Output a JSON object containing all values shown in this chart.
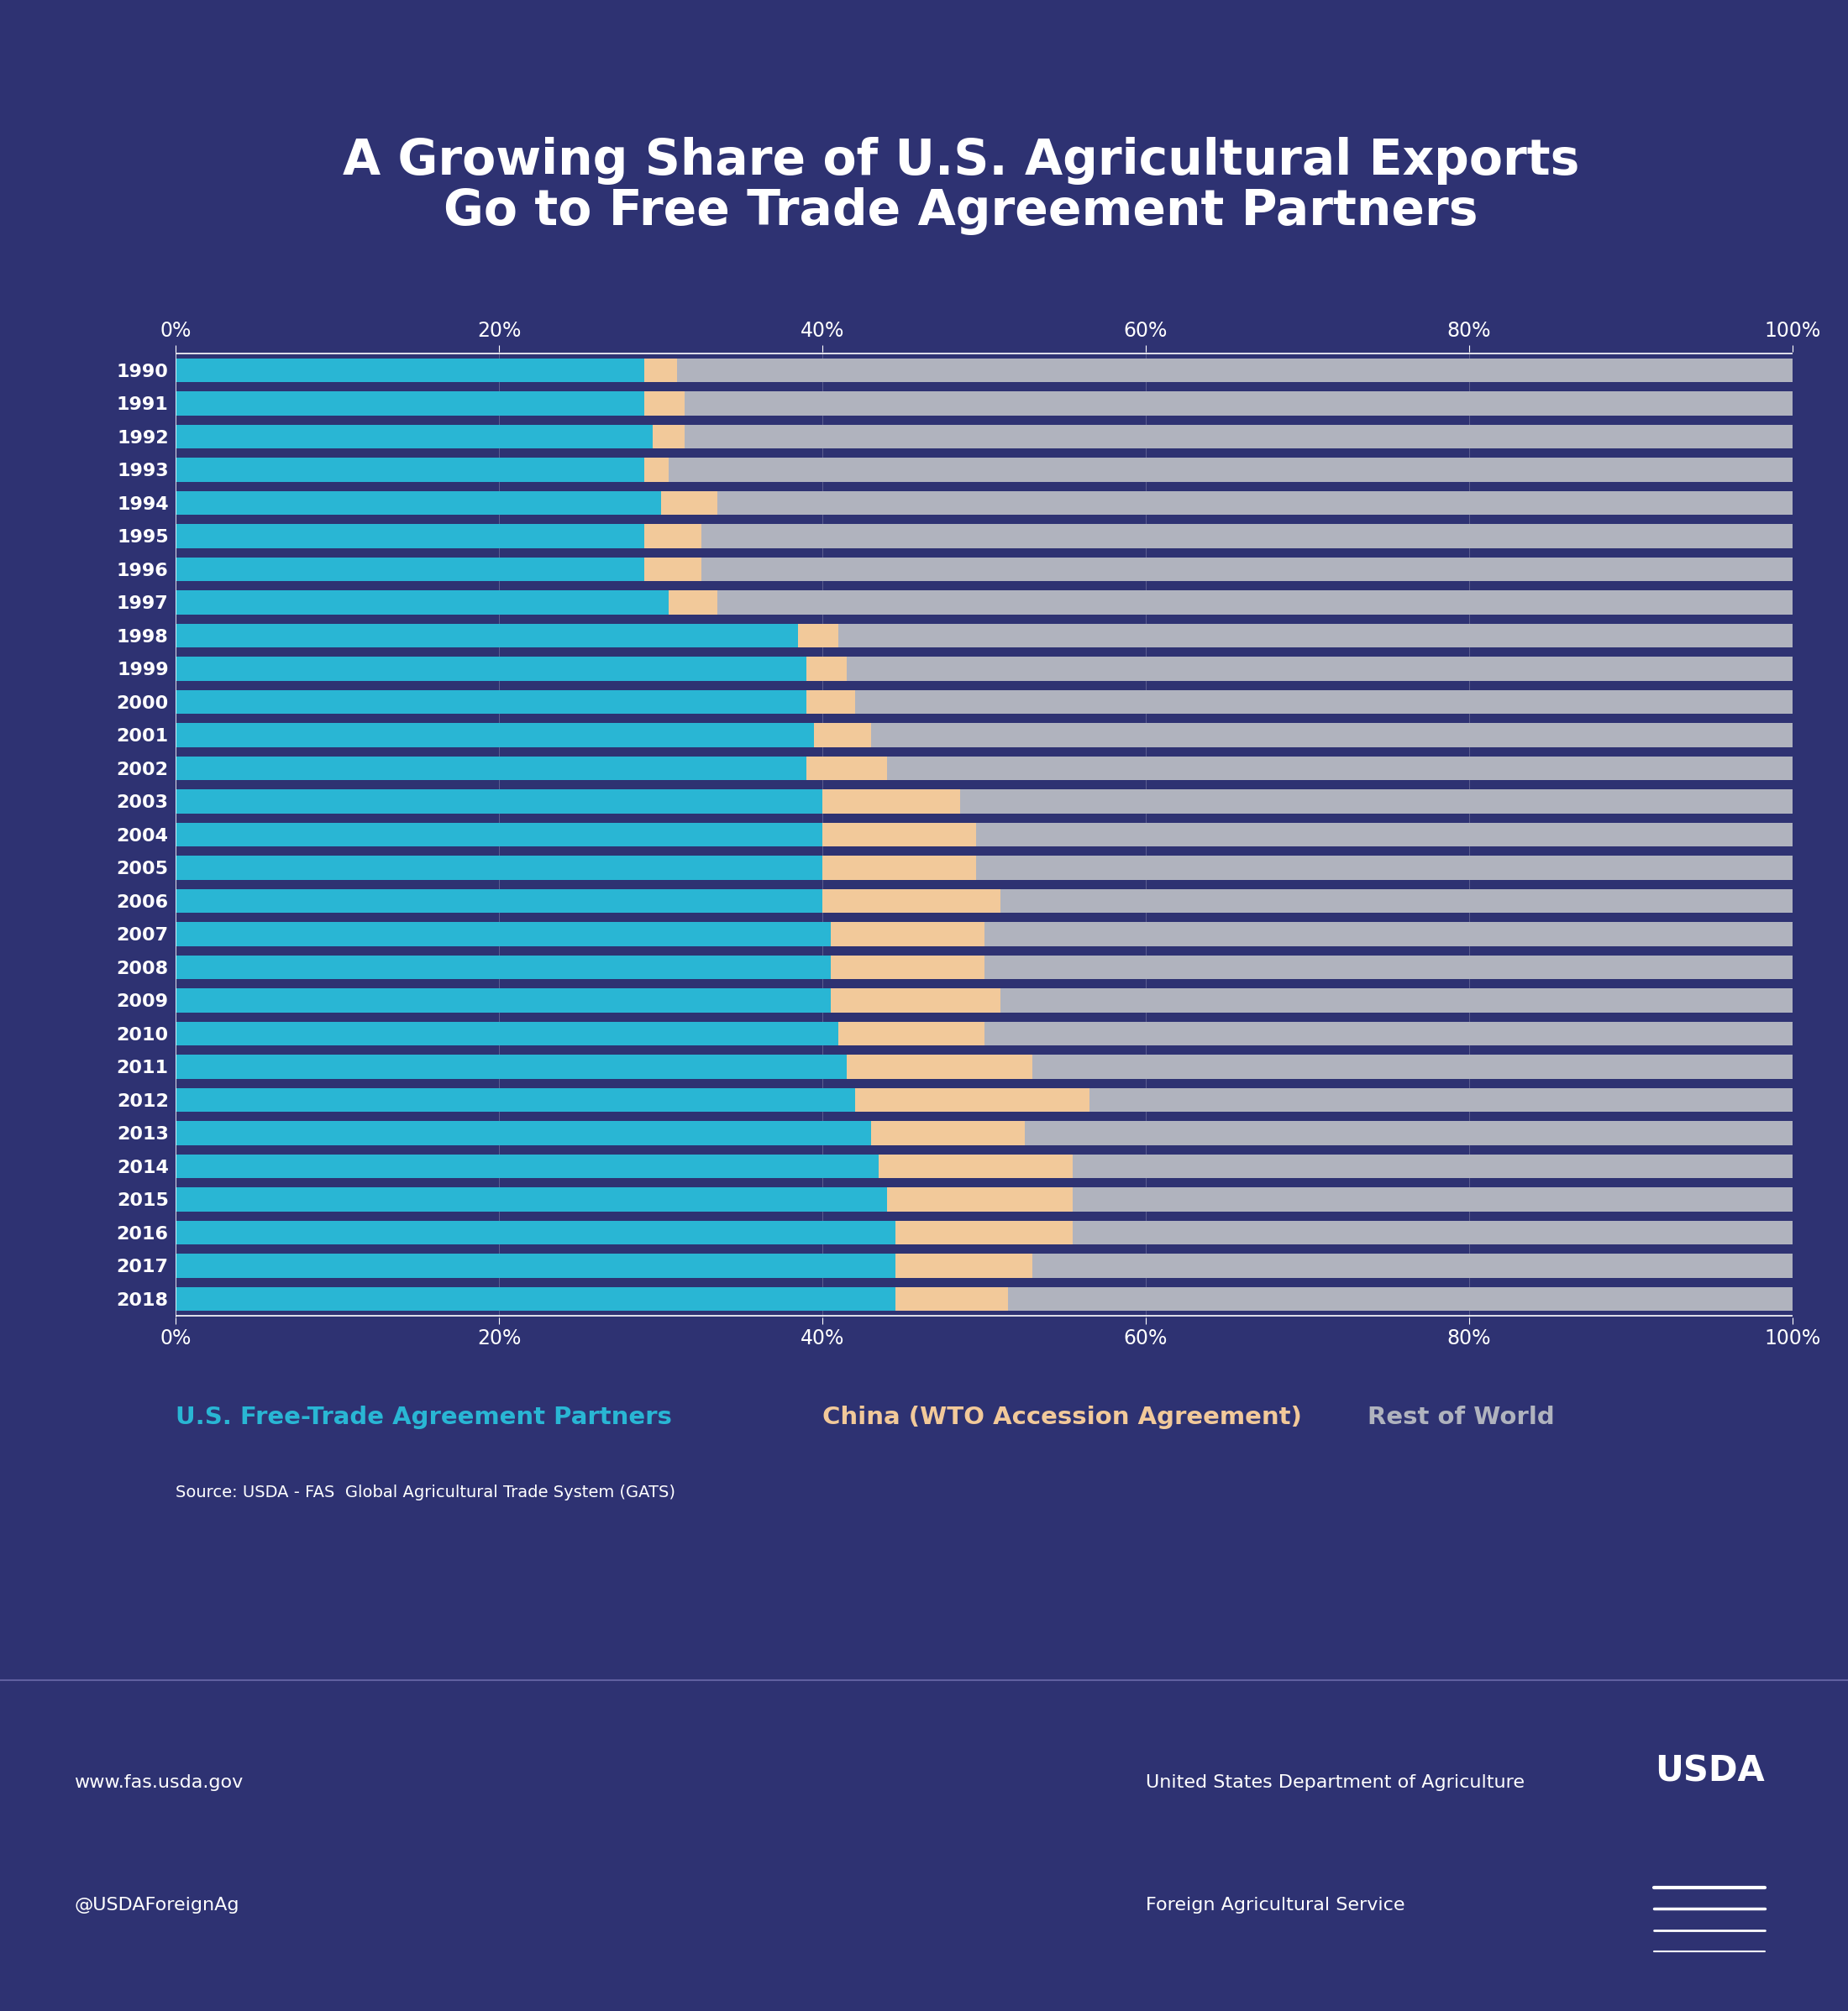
{
  "title_line1": "A Growing Share of U.S. Agricultural Exports",
  "title_line2": "Go to Free Trade Agreement Partners",
  "years": [
    1990,
    1991,
    1992,
    1993,
    1994,
    1995,
    1996,
    1997,
    1998,
    1999,
    2000,
    2001,
    2002,
    2003,
    2004,
    2005,
    2006,
    2007,
    2008,
    2009,
    2010,
    2011,
    2012,
    2013,
    2014,
    2015,
    2016,
    2017,
    2018
  ],
  "fta": [
    29.0,
    29.0,
    29.5,
    29.0,
    30.0,
    29.0,
    29.0,
    30.5,
    38.5,
    39.0,
    39.0,
    39.5,
    39.0,
    40.0,
    40.0,
    40.0,
    40.0,
    40.5,
    40.5,
    40.5,
    41.0,
    41.5,
    42.0,
    43.0,
    43.5,
    44.0,
    44.5,
    44.5,
    44.5
  ],
  "china": [
    2.0,
    2.5,
    2.0,
    1.5,
    3.5,
    3.5,
    3.5,
    3.0,
    2.5,
    2.5,
    3.0,
    3.5,
    5.0,
    8.5,
    9.5,
    9.5,
    11.0,
    9.5,
    9.5,
    10.5,
    9.0,
    11.5,
    14.5,
    9.5,
    12.0,
    11.5,
    11.0,
    8.5,
    7.0
  ],
  "bg_color": "#2e3272",
  "fta_color": "#29b6d4",
  "china_color": "#f2c99a",
  "rest_color": "#b0b3be",
  "title_color": "#ffffff",
  "axis_tick_color": "#ffffff",
  "year_label_color": "#ffffff",
  "legend_fta_label": "U.S. Free-Trade Agreement Partners",
  "legend_china_label": "China (WTO Accession Agreement)",
  "legend_rest_label": "Rest of World",
  "source_text": "Source: USDA - FAS  Global Agricultural Trade System (GATS)",
  "footer_left_line1": "www.fas.usda.gov",
  "footer_left_line2": "@USDAForeignAg",
  "footer_right_line1": "United States Department of Agriculture",
  "footer_right_line2": "Foreign Agricultural Service",
  "footer_bg_color": "#1e2260"
}
